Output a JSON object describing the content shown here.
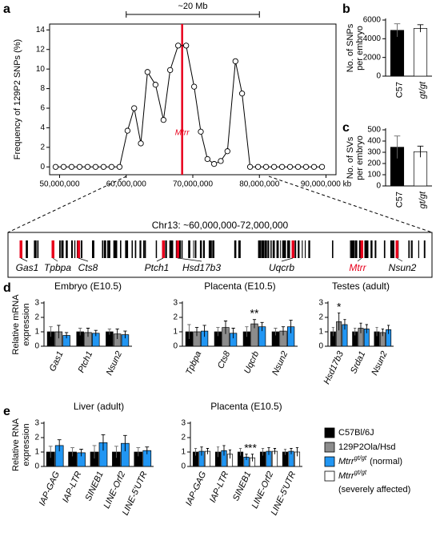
{
  "panel_labels": [
    "a",
    "b",
    "c",
    "d",
    "e"
  ],
  "chart_data": [
    {
      "type": "line",
      "ylabel": "Frequency of 129P2 SNPs (%)",
      "color": "#000000",
      "x": [
        49400000,
        50600000,
        51800000,
        53000000,
        54200000,
        55400000,
        56600000,
        57800000,
        59000000,
        60200000,
        61200000,
        62200000,
        63200000,
        64400000,
        65600000,
        66600000,
        67800000,
        69000000,
        70200000,
        71200000,
        72200000,
        73200000,
        74200000,
        75200000,
        76400000,
        77400000,
        78600000,
        79800000,
        81000000,
        82200000,
        83400000,
        84600000,
        85800000,
        87000000,
        88200000,
        89400000
      ],
      "values": [
        0,
        0,
        0,
        0,
        0,
        0,
        0,
        0,
        0,
        3.7,
        6.0,
        2.4,
        9.7,
        8.4,
        4.8,
        9.9,
        12.4,
        12.4,
        8.2,
        3.6,
        0.8,
        0.3,
        0.6,
        1.6,
        10.8,
        7.5,
        0,
        0,
        0,
        0,
        0,
        0,
        0,
        0,
        0,
        0
      ],
      "xlim": [
        48500000,
        91500000
      ],
      "ylim": [
        -0.8,
        14.6
      ],
      "xticks": [
        {
          "value": 50000000,
          "label": "50,000,000"
        },
        {
          "value": 60000000,
          "label": "60,000,000"
        },
        {
          "value": 70000000,
          "label": "70,000,000"
        },
        {
          "value": 80000000,
          "label": "80,000,000"
        },
        {
          "value": 90000000,
          "label": "90,000,000 kb"
        }
      ],
      "yticks": [
        0,
        2,
        4,
        6,
        8,
        10,
        12,
        14
      ],
      "marker": {
        "label": "Mtrr",
        "x": 68400000,
        "color": "#e8001c"
      },
      "bracket": {
        "label": "~20 Mb",
        "from": 60000000,
        "to": 80000000
      }
    },
    {
      "type": "bar",
      "ylabel": [
        "No. of SNPs",
        "per embryo"
      ],
      "categories": [
        "C57",
        "gt/gt"
      ],
      "category_italic": [
        false,
        true
      ],
      "values": [
        4900,
        5100
      ],
      "errors": [
        700,
        400
      ],
      "colors": [
        "#000000",
        "#ffffff"
      ],
      "ylim": [
        0,
        6000
      ],
      "yticks": [
        0,
        2000,
        4000,
        6000
      ]
    },
    {
      "type": "bar",
      "ylabel": [
        "No. of SVs",
        "per embryo"
      ],
      "categories": [
        "C57",
        "gt/gt"
      ],
      "category_italic": [
        false,
        true
      ],
      "values": [
        345,
        305
      ],
      "errors": [
        100,
        50
      ],
      "colors": [
        "#000000",
        "#ffffff"
      ],
      "ylim": [
        0,
        500
      ],
      "yticks": [
        0,
        100,
        200,
        300,
        400,
        500
      ]
    },
    {
      "type": "grouped_bar",
      "title": "Embryo (E10.5)",
      "ylabel": [
        "Relative mRNA",
        "expression"
      ],
      "categories": [
        "Gas1",
        "Ptch1",
        "Nsun2"
      ],
      "category_italic": true,
      "series": [
        {
          "color": "#000000",
          "values": [
            1.0,
            1.0,
            1.0
          ],
          "errors": [
            0.35,
            0.25,
            0.2
          ]
        },
        {
          "color": "#8c8c8c",
          "values": [
            1.0,
            0.95,
            0.85
          ],
          "errors": [
            0.45,
            0.3,
            0.35
          ]
        },
        {
          "color": "#2196f3",
          "values": [
            0.75,
            0.9,
            0.8
          ],
          "errors": [
            0.2,
            0.2,
            0.25
          ]
        }
      ],
      "ylim": [
        0,
        3
      ],
      "yticks": [
        0,
        1,
        2,
        3
      ]
    },
    {
      "type": "grouped_bar",
      "title": "Placenta (E10.5)",
      "categories": [
        "Tpbpa",
        "Cts8",
        "Uqcrb",
        "Nsun2"
      ],
      "category_italic": true,
      "series": [
        {
          "color": "#000000",
          "values": [
            1.0,
            1.0,
            1.0,
            1.0
          ],
          "errors": [
            0.5,
            0.3,
            0.35,
            0.25
          ]
        },
        {
          "color": "#8c8c8c",
          "values": [
            1.0,
            1.3,
            1.55,
            1.05
          ],
          "errors": [
            0.3,
            0.45,
            0.3,
            0.3
          ]
        },
        {
          "color": "#2196f3",
          "values": [
            1.05,
            0.9,
            1.35,
            1.35
          ],
          "errors": [
            0.4,
            0.35,
            0.3,
            0.45
          ]
        }
      ],
      "annotations": [
        {
          "text": "**",
          "category": 2,
          "series": 1
        }
      ],
      "ylim": [
        0,
        3
      ],
      "yticks": [
        0,
        1,
        2,
        3
      ]
    },
    {
      "type": "grouped_bar",
      "title": "Testes (adult)",
      "categories": [
        "Hsd17b3",
        "Srda1",
        "Nsun2"
      ],
      "category_italic": true,
      "series": [
        {
          "color": "#000000",
          "values": [
            1.0,
            1.0,
            1.0
          ],
          "errors": [
            0.3,
            0.25,
            0.3
          ]
        },
        {
          "color": "#8c8c8c",
          "values": [
            1.7,
            1.25,
            0.95
          ],
          "errors": [
            0.6,
            0.35,
            0.25
          ]
        },
        {
          "color": "#2196f3",
          "values": [
            1.5,
            1.2,
            1.15
          ],
          "errors": [
            0.35,
            0.3,
            0.3
          ]
        }
      ],
      "annotations": [
        {
          "text": "*",
          "category": 0,
          "series": 1
        }
      ],
      "ylim": [
        0,
        3
      ],
      "yticks": [
        0,
        1,
        2,
        3
      ]
    },
    {
      "type": "grouped_bar",
      "title": "Liver (adult)",
      "ylabel": [
        "Relative RNA",
        "expression"
      ],
      "categories": [
        "IAP-GAG",
        "IAP-LTR",
        "SINEB1",
        "LINE-Orf2",
        "LINE-5'UTR"
      ],
      "category_italic": true,
      "series": [
        {
          "color": "#000000",
          "values": [
            1.0,
            1.0,
            1.0,
            1.0,
            1.0
          ],
          "errors": [
            0.4,
            0.3,
            0.45,
            0.4,
            0.3
          ]
        },
        {
          "color": "#2196f3",
          "values": [
            1.45,
            0.95,
            1.65,
            1.6,
            1.1
          ],
          "errors": [
            0.4,
            0.25,
            0.55,
            0.55,
            0.25
          ]
        }
      ],
      "ylim": [
        0,
        3
      ],
      "yticks": [
        0,
        1,
        2,
        3
      ]
    },
    {
      "type": "grouped_bar",
      "title": "Placenta (E10.5)",
      "categories": [
        "IAP-GAG",
        "IAP-LTR",
        "SINEB1",
        "LINE-Orf2",
        "LINE-5'UTR"
      ],
      "category_italic": true,
      "series": [
        {
          "color": "#000000",
          "values": [
            1.0,
            1.0,
            1.0,
            1.0,
            1.0
          ],
          "errors": [
            0.25,
            0.35,
            0.25,
            0.25,
            0.2
          ]
        },
        {
          "color": "#2196f3",
          "values": [
            1.05,
            1.1,
            0.65,
            1.05,
            1.05
          ],
          "errors": [
            0.3,
            0.35,
            0.2,
            0.25,
            0.2
          ]
        },
        {
          "color": "#ffffff",
          "values": [
            1.05,
            0.85,
            0.6,
            1.05,
            1.0
          ],
          "errors": [
            0.2,
            0.3,
            0.25,
            0.2,
            0.3
          ]
        }
      ],
      "annotations": [
        {
          "text": "*",
          "category": 2,
          "series": 1
        },
        {
          "text": "**",
          "category": 2,
          "series": 2
        }
      ],
      "ylim": [
        0,
        3
      ],
      "yticks": [
        0,
        1,
        2,
        3
      ]
    }
  ],
  "chromosome": {
    "title": "Chr13: ~60,000,000-72,000,000",
    "genes": [
      {
        "label": "Gas1",
        "color": "#000000"
      },
      {
        "label": "Tpbpa",
        "color": "#000000"
      },
      {
        "label": "Cts8",
        "color": "#000000"
      },
      {
        "label": "Ptch1",
        "color": "#000000"
      },
      {
        "label": "Hsd17b3",
        "color": "#000000"
      },
      {
        "label": "Uqcrb",
        "color": "#000000"
      },
      {
        "label": "Mtrr",
        "color": "#e8001c"
      },
      {
        "label": "Nsun2",
        "color": "#000000"
      }
    ]
  },
  "legend": [
    {
      "label": "C57Bl/6J",
      "color": "#000000"
    },
    {
      "label": "129P2Ola/Hsd",
      "color": "#8c8c8c"
    },
    {
      "label": "Mtrr",
      "sup": "gt/gt",
      "note": "(normal)",
      "color": "#2196f3"
    },
    {
      "label": "Mtrr",
      "sup": "gt/gt",
      "note": "(severely affected)",
      "color": "#ffffff"
    }
  ]
}
